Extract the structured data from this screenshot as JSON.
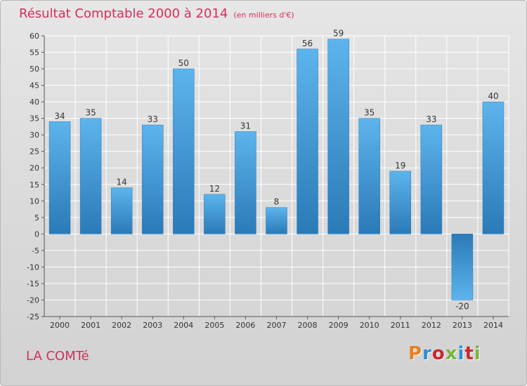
{
  "header": {
    "title": "Résultat Comptable 2000 à 2014",
    "unit": "(en milliers d'€)"
  },
  "footer": {
    "place": "LA COMTé",
    "logo_text": "Proxiti",
    "logo_colors": [
      "#e8801e",
      "#2a8fd6",
      "#c9282e",
      "#7cb342",
      "#2a8fd6",
      "#c9282e",
      "#7cb342"
    ]
  },
  "colors": {
    "bar_light": "#5db4ec",
    "bar_dark": "#2a7ab8",
    "axis": "#555555",
    "grid": "#ffffff",
    "label": "#333333",
    "title": "#d2305a"
  },
  "chart_data": {
    "type": "bar",
    "title": "Résultat Comptable 2000 à 2014",
    "subtitle": "(en milliers d'€)",
    "xlabel": "",
    "ylabel": "",
    "categories": [
      "2000",
      "2001",
      "2002",
      "2003",
      "2004",
      "2005",
      "2006",
      "2007",
      "2008",
      "2009",
      "2010",
      "2011",
      "2012",
      "2013",
      "2014"
    ],
    "values": [
      34,
      35,
      14,
      33,
      50,
      12,
      31,
      8,
      56,
      59,
      35,
      19,
      33,
      -20,
      40
    ],
    "ylim": [
      -25,
      60
    ],
    "yticks": [
      60,
      55,
      50,
      45,
      40,
      35,
      30,
      25,
      20,
      15,
      10,
      5,
      0,
      -5,
      -10,
      -15,
      -20,
      -25
    ],
    "grid": true,
    "legend": "none"
  }
}
